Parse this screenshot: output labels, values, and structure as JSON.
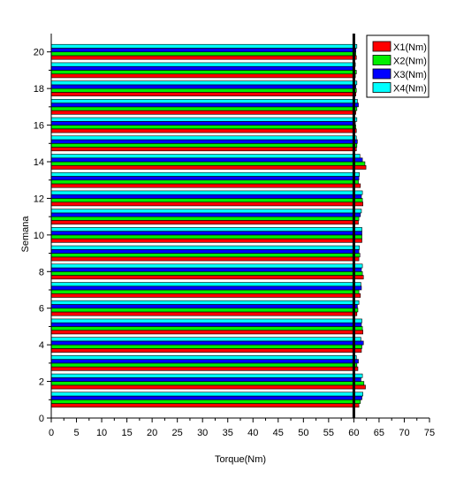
{
  "chart_data": {
    "type": "bar",
    "orientation": "horizontal",
    "xlabel": "Torque(Nm)",
    "ylabel": "Semana",
    "xlim": [
      0,
      75
    ],
    "ylim": [
      0,
      21
    ],
    "x_ticks": [
      0,
      5,
      10,
      15,
      20,
      25,
      30,
      35,
      40,
      45,
      50,
      55,
      60,
      65,
      70,
      75
    ],
    "y_ticks": [
      0,
      2,
      4,
      6,
      8,
      10,
      12,
      14,
      16,
      18,
      20
    ],
    "categories": [
      1,
      2,
      3,
      4,
      5,
      6,
      7,
      8,
      9,
      10,
      11,
      12,
      13,
      14,
      15,
      16,
      17,
      18,
      19,
      20
    ],
    "series": [
      {
        "name": "X1(Nm)",
        "color": "#ff0000",
        "values": [
          61.0,
          62.3,
          60.8,
          61.5,
          61.8,
          60.6,
          61.3,
          61.9,
          61.0,
          61.6,
          60.9,
          61.8,
          61.3,
          62.4,
          60.5,
          60.5,
          60.4,
          60.4,
          60.3,
          60.5
        ]
      },
      {
        "name": "X2(Nm)",
        "color": "#00ee00",
        "values": [
          61.3,
          62.0,
          60.6,
          61.6,
          61.7,
          60.8,
          61.0,
          61.7,
          61.2,
          61.6,
          61.0,
          61.7,
          60.9,
          62.2,
          60.6,
          60.4,
          60.6,
          60.5,
          60.5,
          60.4
        ]
      },
      {
        "name": "X3(Nm)",
        "color": "#0000ff",
        "values": [
          61.6,
          61.4,
          60.9,
          61.9,
          61.5,
          60.7,
          61.5,
          61.5,
          61.0,
          61.6,
          61.3,
          61.5,
          61.0,
          61.7,
          60.7,
          60.3,
          60.9,
          60.4,
          60.2,
          60.4
        ]
      },
      {
        "name": "X4(Nm)",
        "color": "#00ffff",
        "values": [
          61.8,
          61.7,
          60.5,
          61.4,
          61.6,
          61.0,
          61.4,
          61.7,
          61.1,
          61.6,
          61.5,
          61.7,
          61.1,
          61.2,
          60.5,
          60.6,
          60.7,
          60.6,
          60.3,
          60.6
        ]
      }
    ],
    "reference_line": {
      "x": 60,
      "color": "#000000"
    },
    "legend_position": "top-right",
    "grid": false
  }
}
